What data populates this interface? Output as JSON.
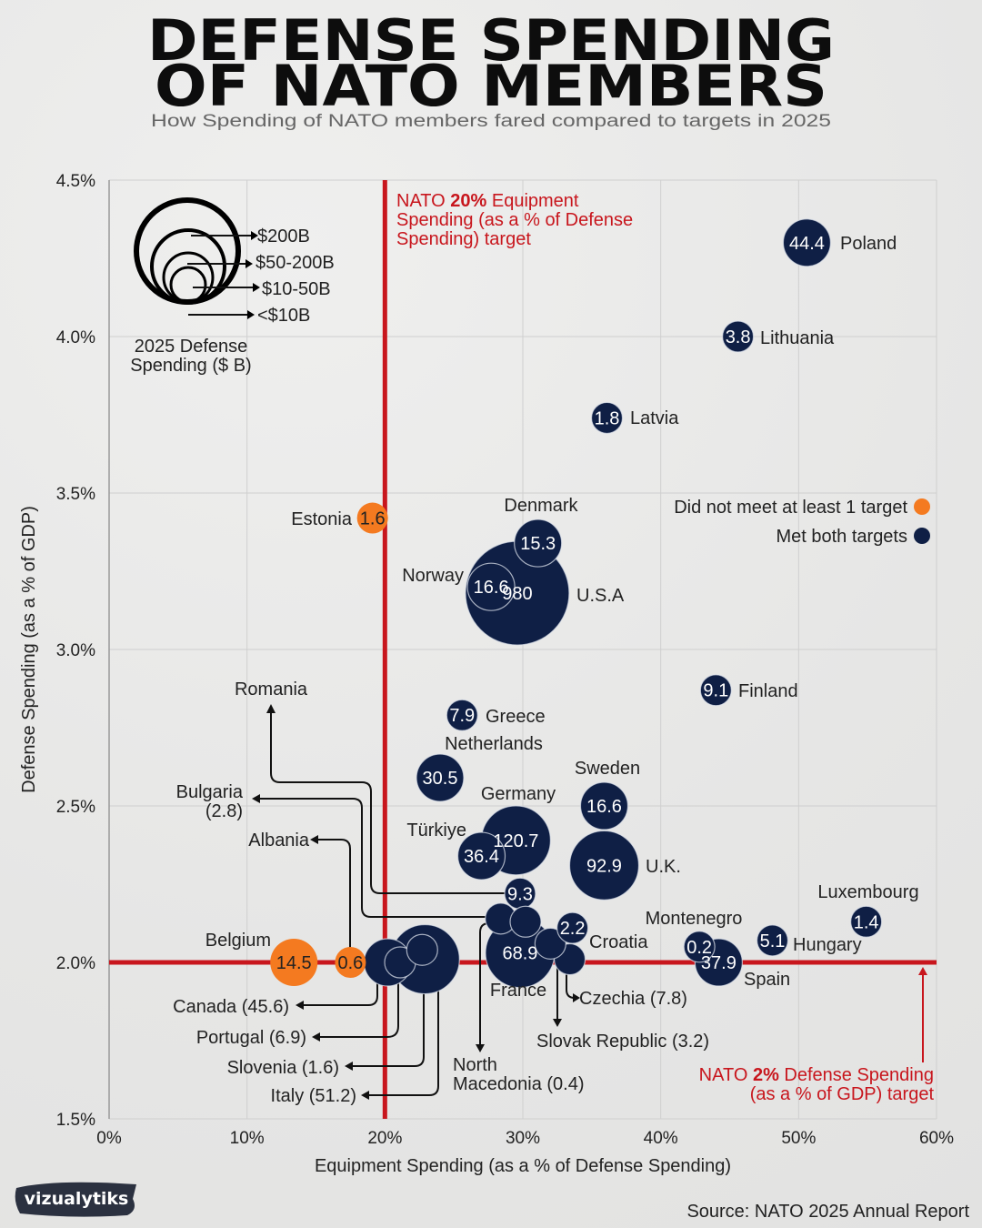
{
  "chart_data": {
    "type": "scatter",
    "title_line1": "DEFENSE SPENDING",
    "title_line2": "OF NATO MEMBERS",
    "subtitle": "How Spending of NATO members fared compared to targets in 2025",
    "xlabel": "Equipment Spending (as a % of Defense Spending)",
    "ylabel": "Defense Spending (as a % of GDP)",
    "xlim": [
      0,
      60
    ],
    "ylim": [
      1.5,
      4.5
    ],
    "xticks": [
      0,
      10,
      20,
      30,
      40,
      50,
      60
    ],
    "xtick_labels": [
      "0%",
      "10%",
      "20%",
      "30%",
      "40%",
      "50%",
      "60%"
    ],
    "yticks": [
      1.5,
      2.0,
      2.5,
      3.0,
      3.5,
      4.0,
      4.5
    ],
    "ytick_labels": [
      "1.5%",
      "2.0%",
      "2.5%",
      "3.0%",
      "3.5%",
      "4.0%",
      "4.5%"
    ],
    "grid": true,
    "size_legend": {
      "title_line1": "2025 Defense",
      "title_line2": "Spending ($ B)",
      "items": [
        "$200B",
        "$50-200B",
        "$10-50B",
        "<$10B"
      ]
    },
    "color_legend": {
      "placement": "right",
      "items": [
        {
          "label": "Did not meet at least 1 target",
          "color": "#f47a20"
        },
        {
          "label": "Met both targets",
          "color": "#0f1f45"
        }
      ]
    },
    "reference_lines": {
      "equipment_target": {
        "x": 20,
        "color": "#c8161d",
        "text_pre": "NATO ",
        "text_bold": "20%",
        "text_post": " Equipment",
        "line2": "Spending (as a % of Defense",
        "line3": "Spending) target"
      },
      "gdp_target": {
        "y": 2.0,
        "color": "#c8161d",
        "text_pre": "NATO ",
        "text_bold": "2%",
        "text_post": " Defense Spending",
        "line2": "(as a % of GDP) target"
      }
    },
    "points": [
      {
        "name": "Poland",
        "spending": 44.4,
        "x": 50.6,
        "y": 4.3,
        "met": true
      },
      {
        "name": "Lithuania",
        "spending": 3.8,
        "x": 45.6,
        "y": 4.0,
        "met": true
      },
      {
        "name": "Latvia",
        "spending": 1.8,
        "x": 36.1,
        "y": 3.74,
        "met": true
      },
      {
        "name": "Estonia",
        "spending": 1.6,
        "x": 19.1,
        "y": 3.42,
        "met": false
      },
      {
        "name": "Denmark",
        "spending": 15.3,
        "x": 31.1,
        "y": 3.34,
        "met": true
      },
      {
        "name": "Norway",
        "spending": 16.6,
        "x": 27.7,
        "y": 3.2,
        "met": true
      },
      {
        "name": "U.S.A",
        "spending": 980,
        "x": 29.6,
        "y": 3.18,
        "met": true
      },
      {
        "name": "Finland",
        "spending": 9.1,
        "x": 44.0,
        "y": 2.87,
        "met": true
      },
      {
        "name": "Greece",
        "spending": 7.9,
        "x": 25.6,
        "y": 2.79,
        "met": true
      },
      {
        "name": "Netherlands",
        "spending": 30.5,
        "x": 24.0,
        "y": 2.59,
        "met": true
      },
      {
        "name": "Sweden",
        "spending": 16.6,
        "x": 35.9,
        "y": 2.5,
        "met": true
      },
      {
        "name": "Germany",
        "spending": 120.7,
        "x": 29.5,
        "y": 2.39,
        "met": true
      },
      {
        "name": "Türkiye",
        "spending": 36.4,
        "x": 27.0,
        "y": 2.34,
        "met": true
      },
      {
        "name": "U.K.",
        "spending": 92.9,
        "x": 35.9,
        "y": 2.31,
        "met": true
      },
      {
        "name": "Romania",
        "spending": 9.3,
        "x": 29.8,
        "y": 2.22,
        "met": true
      },
      {
        "name": "Bulgaria",
        "spending": 2.8,
        "x": 28.4,
        "y": 2.14,
        "met": true
      },
      {
        "name": "North Macedonia",
        "spending": 0.4,
        "x": 30.2,
        "y": 2.13,
        "met": true
      },
      {
        "name": "Croatia",
        "spending": 2.2,
        "x": 33.6,
        "y": 2.11,
        "met": true
      },
      {
        "name": "France",
        "spending": 68.9,
        "x": 29.8,
        "y": 2.03,
        "met": true
      },
      {
        "name": "Slovak Republic",
        "spending": 3.2,
        "x": 32.0,
        "y": 2.06,
        "met": true
      },
      {
        "name": "Czechia",
        "spending": 7.8,
        "x": 33.4,
        "y": 2.01,
        "met": true
      },
      {
        "name": "Luxembourg",
        "spending": 1.4,
        "x": 54.9,
        "y": 2.13,
        "met": true
      },
      {
        "name": "Hungary",
        "spending": 5.1,
        "x": 48.1,
        "y": 2.07,
        "met": true
      },
      {
        "name": "Montenegro",
        "spending": 0.2,
        "x": 42.8,
        "y": 2.05,
        "met": true
      },
      {
        "name": "Spain",
        "spending": 37.9,
        "x": 44.2,
        "y": 2.0,
        "met": true
      },
      {
        "name": "Belgium",
        "spending": 14.5,
        "x": 13.4,
        "y": 2.0,
        "met": false
      },
      {
        "name": "Albania",
        "spending": 0.6,
        "x": 17.5,
        "y": 2.0,
        "met": false
      },
      {
        "name": "Canada",
        "spending": 45.6,
        "x": 20.2,
        "y": 2.0,
        "met": true
      },
      {
        "name": "Italy",
        "spending": 51.2,
        "x": 22.9,
        "y": 2.01,
        "met": true
      },
      {
        "name": "Portugal",
        "spending": 6.9,
        "x": 21.1,
        "y": 2.0,
        "met": true
      },
      {
        "name": "Slovenia",
        "spending": 1.6,
        "x": 22.7,
        "y": 2.04,
        "met": true
      }
    ]
  },
  "branding": {
    "logo": "vizualytiks"
  },
  "source": "Source: NATO 2025 Annual Report"
}
